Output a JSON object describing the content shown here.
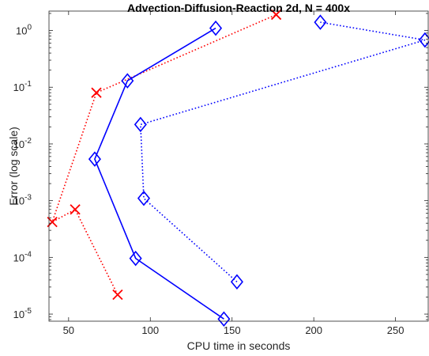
{
  "chart_data": {
    "type": "line",
    "title": "Advection-Diffusion-Reaction 2d, N = 400x",
    "xlabel": "CPU time in seconds",
    "ylabel": "Error (log scale)",
    "xlim": [
      38,
      270
    ],
    "ylim": [
      7.5e-06,
      2.2
    ],
    "yscale": "log",
    "x_ticks": [
      50,
      100,
      150,
      200,
      250
    ],
    "y_ticks": [
      {
        "value": 1e-05,
        "base": "10",
        "exp": "-5"
      },
      {
        "value": 0.0001,
        "base": "10",
        "exp": "-4"
      },
      {
        "value": 0.001,
        "base": "10",
        "exp": "-3"
      },
      {
        "value": 0.01,
        "base": "10",
        "exp": "-2"
      },
      {
        "value": 0.1,
        "base": "10",
        "exp": "-1"
      },
      {
        "value": 1,
        "base": "10",
        "exp": "0"
      }
    ],
    "grid": false,
    "series": [
      {
        "marker": "x",
        "linestyle": "dotted",
        "color": "#ff0000",
        "points": [
          [
            80,
            2.2e-05
          ],
          [
            54,
            0.0007
          ],
          [
            40,
            0.00042
          ],
          [
            67,
            0.08
          ],
          [
            177,
            1.9
          ]
        ]
      },
      {
        "marker": "diamond",
        "linestyle": "solid",
        "color": "#0000ff",
        "points": [
          [
            145,
            8.2e-06
          ],
          [
            91,
            9.6e-05
          ],
          [
            66,
            0.0054
          ],
          [
            86,
            0.13
          ],
          [
            140,
            1.1
          ]
        ]
      },
      {
        "marker": "diamond",
        "linestyle": "dotted",
        "color": "#0000ff",
        "points": [
          [
            153,
            3.7e-05
          ],
          [
            96,
            0.0011
          ],
          [
            94,
            0.022
          ],
          [
            268,
            0.68
          ],
          [
            204,
            1.4
          ]
        ]
      }
    ]
  }
}
